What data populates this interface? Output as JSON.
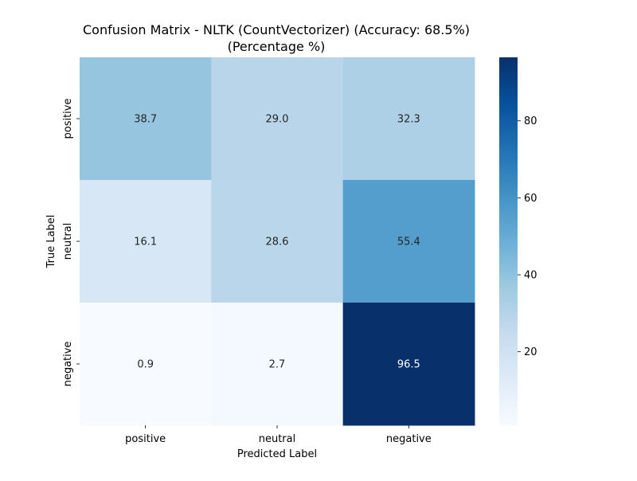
{
  "chart_data": {
    "type": "heatmap",
    "title": "Confusion Matrix - NLTK (CountVectorizer) (Accuracy: 68.5%)",
    "subtitle": "(Percentage %)",
    "xlabel": "Predicted Label",
    "ylabel": "True Label",
    "x_categories": [
      "positive",
      "neutral",
      "negative"
    ],
    "y_categories": [
      "positive",
      "neutral",
      "negative"
    ],
    "values": [
      [
        38.7,
        29.0,
        32.3
      ],
      [
        16.1,
        28.6,
        55.4
      ],
      [
        0.9,
        2.7,
        96.5
      ]
    ],
    "cell_labels": [
      [
        "38.7",
        "29.0",
        "32.3"
      ],
      [
        "16.1",
        "28.6",
        "55.4"
      ],
      [
        "0.9",
        "2.7",
        "96.5"
      ]
    ],
    "colormap": "Blues",
    "colorbar": {
      "vmin": 0.9,
      "vmax": 96.5,
      "ticks": [
        20,
        40,
        60,
        80
      ],
      "tick_labels": [
        "20",
        "40",
        "60",
        "80"
      ]
    },
    "grid": false
  }
}
